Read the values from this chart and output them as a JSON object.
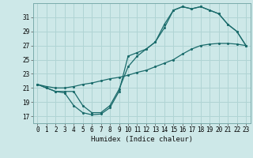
{
  "xlabel": "Humidex (Indice chaleur)",
  "bg_color": "#cde8e8",
  "grid_color": "#b0d4d4",
  "line_color": "#1a6b6b",
  "xlim": [
    -0.5,
    23.5
  ],
  "ylim": [
    16,
    33
  ],
  "yticks": [
    17,
    19,
    21,
    23,
    25,
    27,
    29,
    31
  ],
  "xticks": [
    0,
    1,
    2,
    3,
    4,
    5,
    6,
    7,
    8,
    9,
    10,
    11,
    12,
    13,
    14,
    15,
    16,
    17,
    18,
    19,
    20,
    21,
    22,
    23
  ],
  "series1_x": [
    0,
    1,
    2,
    3,
    4,
    5,
    6,
    7,
    8,
    9,
    10,
    11,
    12,
    13,
    14,
    15,
    16,
    17,
    18,
    19,
    20,
    21,
    22,
    23
  ],
  "series1_y": [
    21.5,
    21.0,
    20.5,
    20.3,
    18.5,
    17.5,
    17.2,
    17.3,
    18.2,
    20.5,
    25.5,
    26.0,
    26.5,
    27.5,
    30.0,
    32.0,
    32.5,
    32.2,
    32.5,
    32.0,
    31.5,
    30.0,
    29.0,
    27.0
  ],
  "series2_x": [
    0,
    1,
    2,
    3,
    4,
    5,
    6,
    7,
    8,
    9,
    10,
    11,
    12,
    13,
    14,
    15,
    16,
    17,
    18,
    19,
    20,
    21,
    22,
    23
  ],
  "series2_y": [
    21.5,
    21.0,
    20.5,
    20.5,
    20.5,
    18.5,
    17.5,
    17.5,
    18.5,
    20.8,
    24.0,
    25.5,
    26.5,
    27.5,
    29.5,
    32.0,
    32.5,
    32.2,
    32.5,
    32.0,
    31.5,
    30.0,
    29.0,
    27.0
  ],
  "series3_x": [
    0,
    1,
    2,
    3,
    4,
    5,
    6,
    7,
    8,
    9,
    10,
    11,
    12,
    13,
    14,
    15,
    16,
    17,
    18,
    19,
    20,
    21,
    22,
    23
  ],
  "series3_y": [
    21.5,
    21.2,
    21.0,
    21.0,
    21.2,
    21.5,
    21.7,
    22.0,
    22.3,
    22.5,
    22.8,
    23.2,
    23.5,
    24.0,
    24.5,
    25.0,
    25.8,
    26.5,
    27.0,
    27.2,
    27.3,
    27.3,
    27.2,
    27.0
  ]
}
